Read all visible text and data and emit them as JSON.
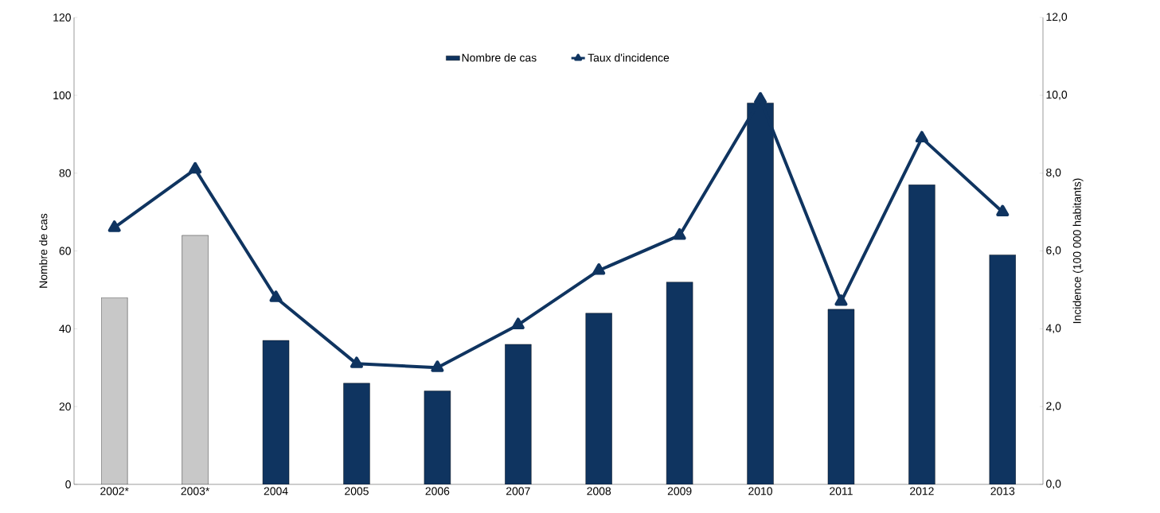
{
  "chart_data": {
    "type": "bar",
    "categories": [
      "2002*",
      "2003*",
      "2004",
      "2005",
      "2006",
      "2007",
      "2008",
      "2009",
      "2010",
      "2011",
      "2012",
      "2013"
    ],
    "ylabel": "Nombre de cas",
    "y2label": "Incidence (100 000 habitants)",
    "ylim": [
      0,
      120
    ],
    "yticks": [
      0,
      20,
      40,
      60,
      80,
      100,
      120
    ],
    "y2lim": [
      0,
      12
    ],
    "y2ticks": [
      {
        "value": 0,
        "label": "0,0"
      },
      {
        "value": 2,
        "label": "2,0"
      },
      {
        "value": 4,
        "label": "4,0"
      },
      {
        "value": 6,
        "label": "6,0"
      },
      {
        "value": 8,
        "label": "8,0"
      },
      {
        "value": 10,
        "label": "10,0"
      },
      {
        "value": 12,
        "label": "12,0"
      }
    ],
    "legend": "top",
    "grid": false,
    "series": [
      {
        "name": "Nombre de cas",
        "color": "#0f3460",
        "colors": [
          "#c8c8c8",
          "#c8c8c8",
          "#0f3460",
          "#0f3460",
          "#0f3460",
          "#0f3460",
          "#0f3460",
          "#0f3460",
          "#0f3460",
          "#0f3460",
          "#0f3460",
          "#0f3460"
        ],
        "values": [
          48,
          64,
          37,
          26,
          24,
          36,
          44,
          52,
          98,
          45,
          77,
          59
        ]
      },
      {
        "name": "Taux d'incidence",
        "type": "line",
        "axis": "y2",
        "color": "#0f3460",
        "marker": "triangle",
        "line_style": "solid",
        "values": [
          6.6,
          8.1,
          4.8,
          3.1,
          3.0,
          4.1,
          5.5,
          6.4,
          9.9,
          4.7,
          8.9,
          7.0
        ]
      }
    ]
  }
}
